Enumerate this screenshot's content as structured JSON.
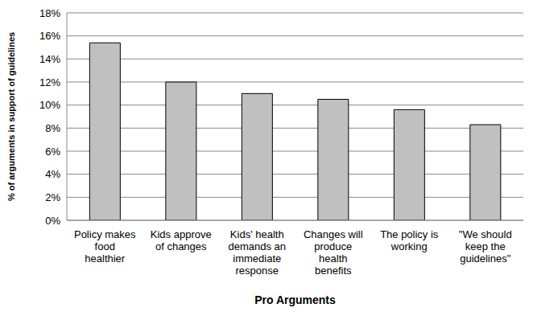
{
  "chart_data": {
    "type": "bar",
    "x_label": "Pro Arguments",
    "y_label": "% of arguments in support of guidelines",
    "categories": [
      "Policy makes food healthier",
      "Kids approve of changes",
      "Kids' health demands an immediate response",
      "Changes will produce health benefits",
      "The policy is working",
      "\"We should keep the guidelines\""
    ],
    "values": [
      15.4,
      12.0,
      11.0,
      10.5,
      9.6,
      8.3
    ],
    "color": "#c0c0c0",
    "ylim": [
      0,
      18
    ],
    "yticks": [
      {
        "value": 0,
        "label": "0%"
      },
      {
        "value": 2,
        "label": "2%"
      },
      {
        "value": 4,
        "label": "4%"
      },
      {
        "value": 6,
        "label": "6%"
      },
      {
        "value": 8,
        "label": "8%"
      },
      {
        "value": 10,
        "label": "10%"
      },
      {
        "value": 12,
        "label": "12%"
      },
      {
        "value": 14,
        "label": "14%"
      },
      {
        "value": 16,
        "label": "16%"
      },
      {
        "value": 18,
        "label": "18%"
      }
    ],
    "grid": true
  }
}
